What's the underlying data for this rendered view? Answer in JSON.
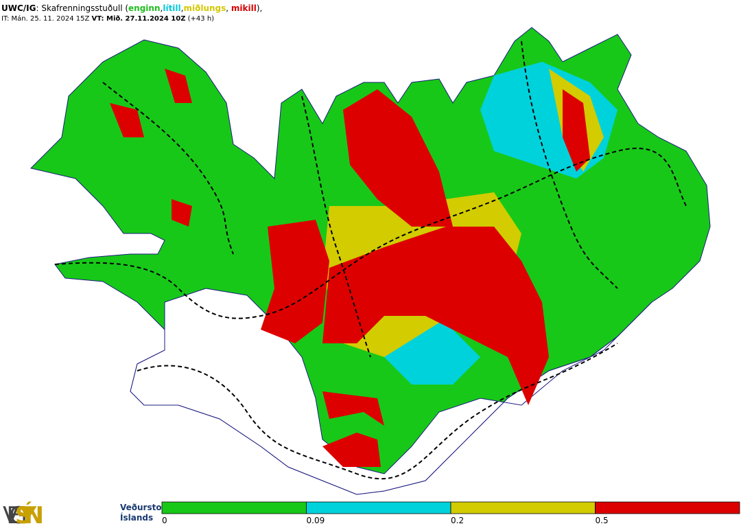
{
  "header": {
    "line1": [
      {
        "text": "UWC/IG",
        "color": "#000000",
        "bold": true
      },
      {
        "text": ": Skafrenningsstuðull (",
        "color": "#000000"
      },
      {
        "text": "enginn",
        "color": "#1fbf1f",
        "bold": true
      },
      {
        "text": ",",
        "color": "#000000"
      },
      {
        "text": "lítill",
        "color": "#00c8d8",
        "bold": true
      },
      {
        "text": ",",
        "color": "#000000"
      },
      {
        "text": "miðlungs",
        "color": "#d4c800",
        "bold": true
      },
      {
        "text": ", ",
        "color": "#000000"
      },
      {
        "text": "mikill",
        "color": "#d40000",
        "bold": true
      },
      {
        "text": "),",
        "color": "#000000"
      }
    ],
    "line2": [
      {
        "text": "IT: Mán. 25. 11. 2024 15Z ",
        "color": "#000000"
      },
      {
        "text": "VT: Mið. 27.11.2024 10Z",
        "color": "#000000",
        "bold": true
      },
      {
        "text": " (+43 h)",
        "color": "#000000"
      }
    ]
  },
  "legend": {
    "colors": [
      "#18c818",
      "#00d2dc",
      "#d2cc00",
      "#dc0000"
    ],
    "ticks": [
      0,
      0.09,
      0.2,
      0.5
    ]
  },
  "logo": {
    "text1": "VEG",
    "text2": "SÝN",
    "org_line1": "Veðurstofa",
    "org_line2": "Íslands"
  }
}
